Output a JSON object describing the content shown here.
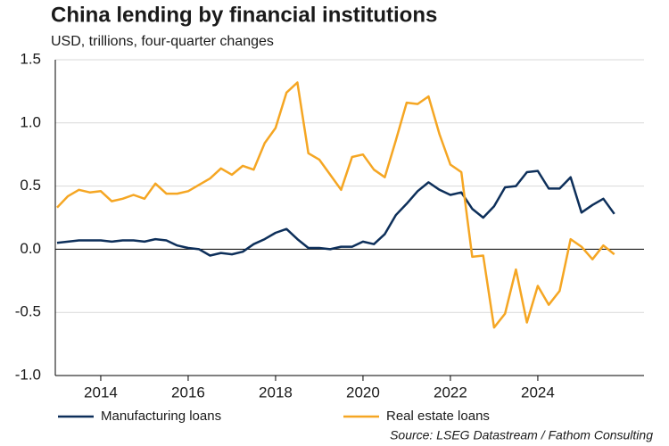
{
  "chart_data": {
    "type": "line",
    "title": "China lending by financial institutions",
    "subtitle": "USD, trillions, four-quarter changes",
    "source": "Source: LSEG Datastream / Fathom Consulting",
    "x": [
      2013.0,
      2013.25,
      2013.5,
      2013.75,
      2014.0,
      2014.25,
      2014.5,
      2014.75,
      2015.0,
      2015.25,
      2015.5,
      2015.75,
      2016.0,
      2016.25,
      2016.5,
      2016.75,
      2017.0,
      2017.25,
      2017.5,
      2017.75,
      2018.0,
      2018.25,
      2018.5,
      2018.75,
      2019.0,
      2019.25,
      2019.5,
      2019.75,
      2020.0,
      2020.25,
      2020.5,
      2020.75,
      2021.0,
      2021.25,
      2021.5,
      2021.75,
      2022.0,
      2022.25,
      2022.5,
      2022.75,
      2023.0,
      2023.25,
      2023.5,
      2023.75,
      2024.0,
      2024.25,
      2024.5,
      2024.75,
      2025.0,
      2025.25,
      2025.5,
      2025.75
    ],
    "series": [
      {
        "name": "Manufacturing loans",
        "color": "#0d2f5a",
        "values": [
          0.05,
          0.06,
          0.07,
          0.07,
          0.07,
          0.06,
          0.07,
          0.07,
          0.06,
          0.08,
          0.07,
          0.03,
          0.01,
          0.0,
          -0.05,
          -0.03,
          -0.04,
          -0.02,
          0.04,
          0.08,
          0.13,
          0.16,
          0.08,
          0.01,
          0.01,
          0.0,
          0.02,
          0.02,
          0.06,
          0.04,
          0.12,
          0.27,
          0.36,
          0.46,
          0.53,
          0.47,
          0.43,
          0.45,
          0.32,
          0.25,
          0.34,
          0.49,
          0.5,
          0.61,
          0.62,
          0.48,
          0.48,
          0.57,
          0.29,
          0.35,
          0.4,
          0.28
        ]
      },
      {
        "name": "Real estate loans",
        "color": "#f5a623",
        "values": [
          0.33,
          0.42,
          0.47,
          0.45,
          0.46,
          0.38,
          0.4,
          0.43,
          0.4,
          0.52,
          0.44,
          0.44,
          0.46,
          0.51,
          0.56,
          0.64,
          0.59,
          0.66,
          0.63,
          0.84,
          0.96,
          1.24,
          1.32,
          0.76,
          0.71,
          0.59,
          0.47,
          0.73,
          0.75,
          0.63,
          0.57,
          0.86,
          1.16,
          1.15,
          1.21,
          0.91,
          0.67,
          0.61,
          -0.06,
          -0.05,
          -0.62,
          -0.51,
          -0.16,
          -0.58,
          -0.29,
          -0.44,
          -0.33,
          0.08,
          0.02,
          -0.08,
          0.03,
          -0.04
        ]
      }
    ],
    "xlim": [
      2012.96,
      2026.43
    ],
    "xticks": [
      2014,
      2016,
      2018,
      2020,
      2022,
      2024
    ],
    "ylim": [
      -1.0,
      1.5
    ],
    "yticks": [
      1.5,
      {
        "value": 1.0,
        "label": "1.0"
      },
      0.5,
      {
        "value": 0.0,
        "label": "0.0"
      },
      -0.5,
      {
        "value": -1.0,
        "label": "-1.0"
      }
    ],
    "grid": true
  }
}
